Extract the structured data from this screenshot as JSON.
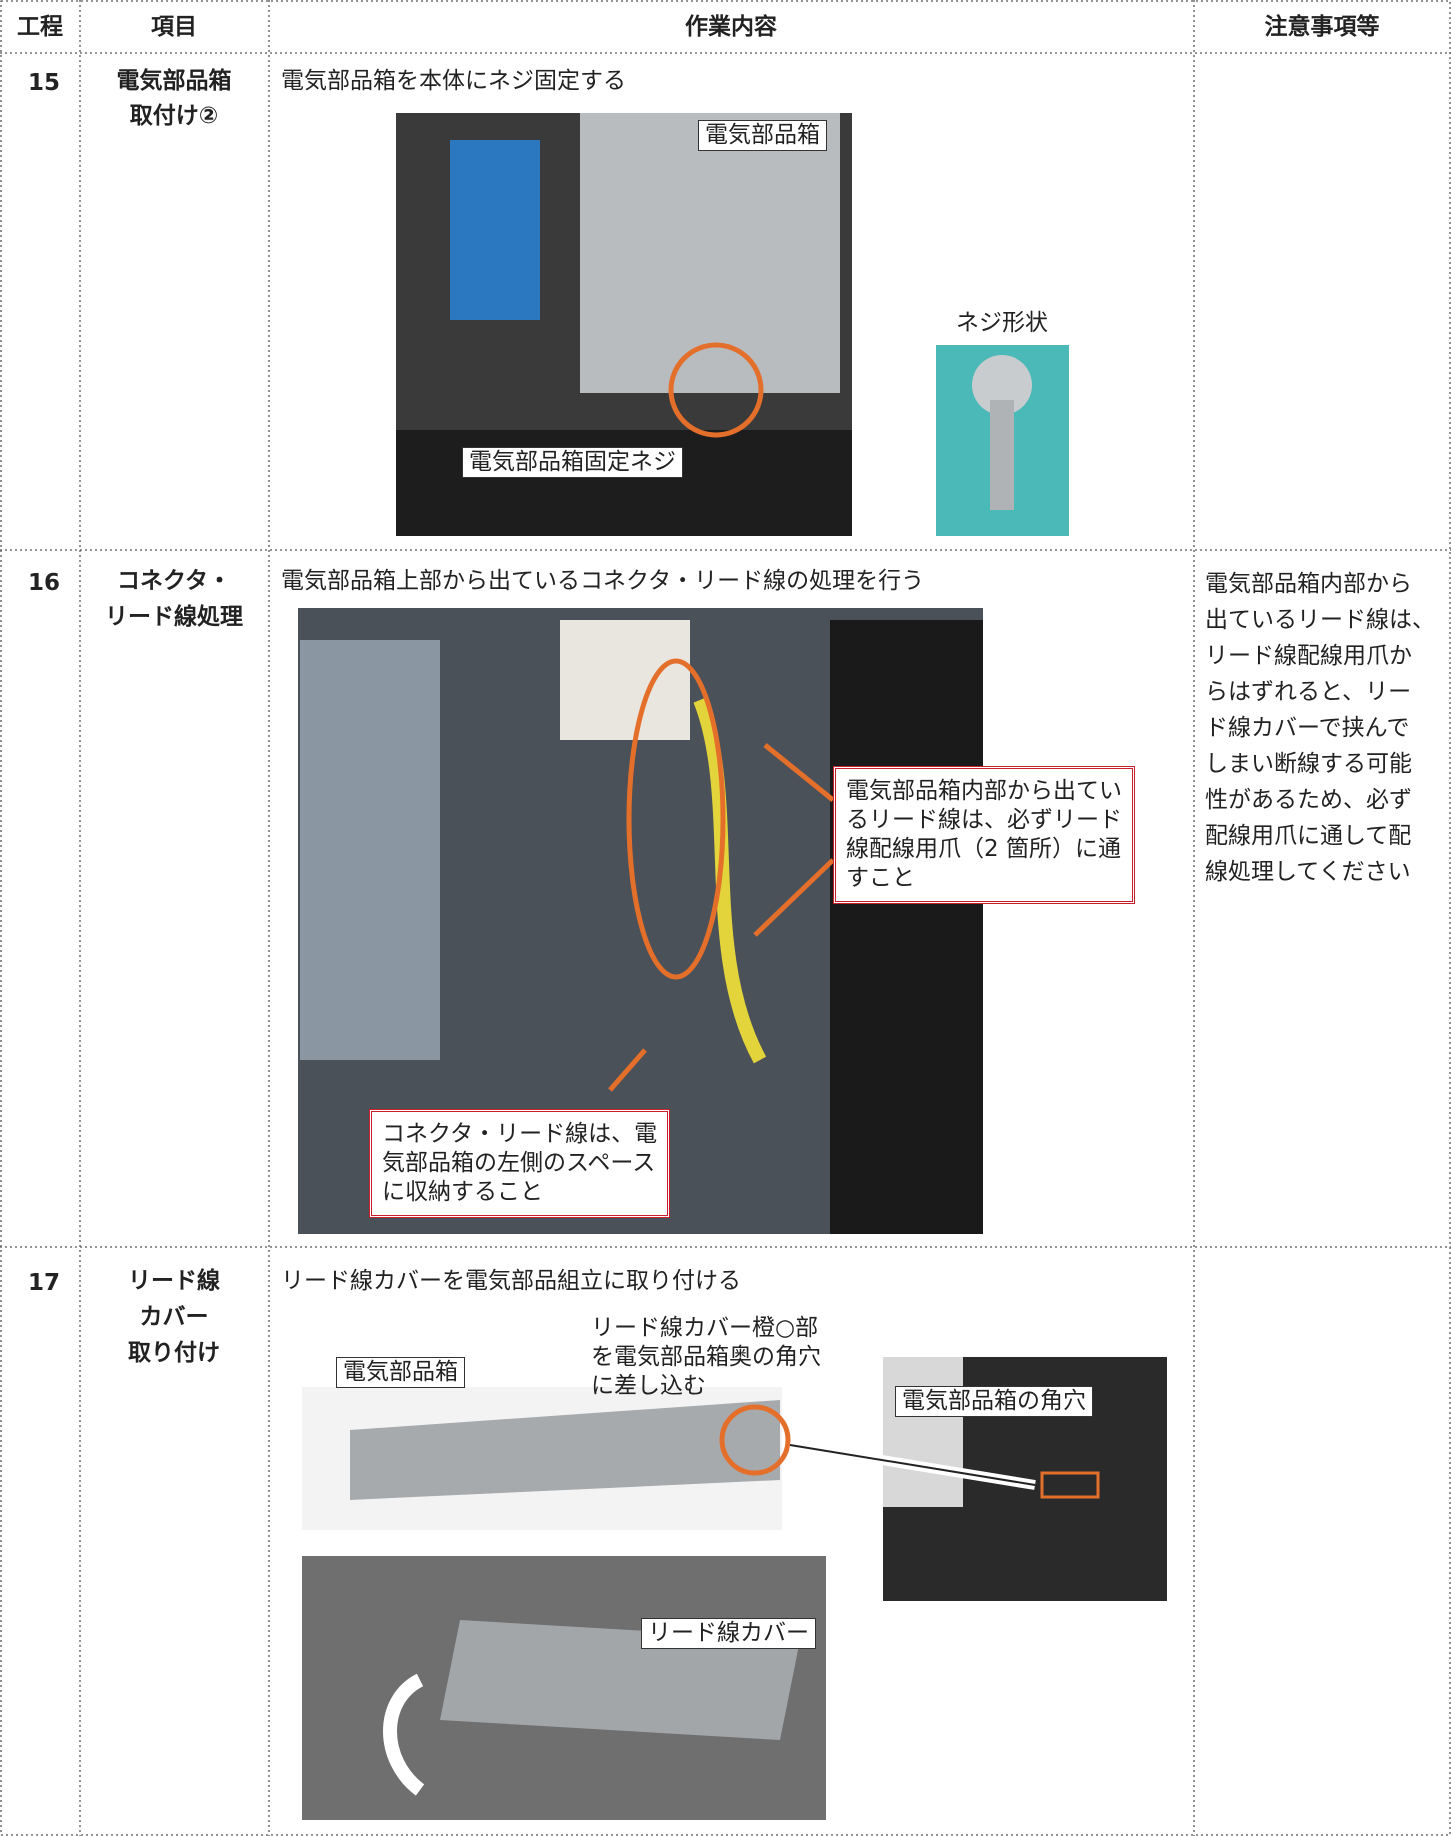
{
  "table": {
    "headers": [
      "工程",
      "項目",
      "作業内容",
      "注意事項等"
    ],
    "rows": [
      {
        "step": "15",
        "item": [
          "電気部品箱",
          "取付け②"
        ],
        "instruction": "電気部品箱を本体にネジ固定する",
        "callouts": [
          "電気部品箱",
          "電気部品箱固定ネジ",
          "ネジ形状"
        ]
      },
      {
        "step": "16",
        "item": [
          "コネクタ・",
          "リード線処理"
        ],
        "instruction": "電気部品箱上部から出ているコネクタ・リード線の処理を行う",
        "callout_right": [
          "電気部品箱内部から出てい",
          "るリード線は、必ずリード",
          "線配線用爪（2 箇所）に通",
          "すこと"
        ],
        "callout_left": [
          "コネクタ・リード線は、電",
          "気部品箱の左側のスペース",
          "に収納すること"
        ],
        "note": [
          "電気部品箱内部から",
          "出ているリード線は、",
          "リード線配線用爪か",
          "らはずれると、リー",
          "ド線カバーで挟んで",
          "しまい断線する可能",
          "性があるため、必ず",
          "配線用爪に通して配",
          "線処理してください"
        ]
      },
      {
        "step": "17",
        "item": [
          "リード線",
          "カバー",
          "取り付け"
        ],
        "instruction": "リード線カバーを電気部品組立に取り付ける",
        "hint": [
          "リード線カバー橙○部",
          "を電気部品箱奥の角穴",
          "に差し込む"
        ],
        "callouts": [
          "電気部品箱",
          "電気部品箱の角穴",
          "リード線カバー"
        ]
      }
    ]
  }
}
